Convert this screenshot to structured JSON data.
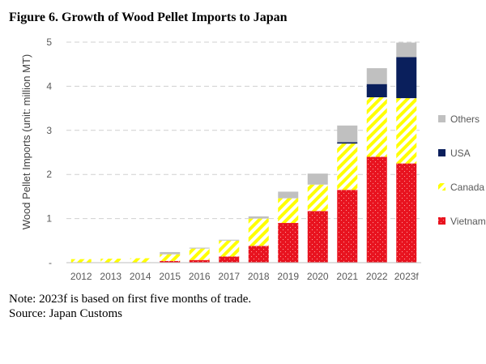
{
  "figure_title": "Figure 6. Growth of Wood Pellet Imports to Japan",
  "note": "Note: 2023f is based on first five months of trade.",
  "source": "Source: Japan Customs",
  "colors": {
    "Vietnam": "#e8131f",
    "Canada": "#ffff00",
    "USA": "#0a1f5c",
    "Others": "#c0c0c0",
    "grid": "#d0d0d0"
  },
  "chart_data": {
    "type": "bar",
    "stacked": true,
    "title": "",
    "xlabel": "",
    "ylabel": "Wood Pellet Imports (unit: million MT)",
    "ylim": [
      0,
      5
    ],
    "yticks": [
      "-",
      "1",
      "2",
      "3",
      "4",
      "5"
    ],
    "grid": true,
    "legend_position": "right",
    "categories": [
      "2012",
      "2013",
      "2014",
      "2015",
      "2016",
      "2017",
      "2018",
      "2019",
      "2020",
      "2021",
      "2022",
      "2023f"
    ],
    "series": [
      {
        "name": "Vietnam",
        "values": [
          0.0,
          0.0,
          0.0,
          0.04,
          0.06,
          0.14,
          0.38,
          0.9,
          1.17,
          1.65,
          2.4,
          2.25
        ]
      },
      {
        "name": "Canada",
        "values": [
          0.08,
          0.09,
          0.1,
          0.15,
          0.26,
          0.36,
          0.62,
          0.56,
          0.6,
          1.05,
          1.35,
          1.48
        ]
      },
      {
        "name": "USA",
        "values": [
          0.0,
          0.0,
          0.0,
          0.0,
          0.0,
          0.0,
          0.0,
          0.0,
          0.0,
          0.03,
          0.3,
          0.93
        ]
      },
      {
        "name": "Others",
        "values": [
          0.0,
          0.0,
          0.0,
          0.05,
          0.02,
          0.02,
          0.05,
          0.15,
          0.25,
          0.38,
          0.36,
          0.33
        ]
      }
    ],
    "legend_order": [
      "Others",
      "USA",
      "Canada",
      "Vietnam"
    ]
  }
}
